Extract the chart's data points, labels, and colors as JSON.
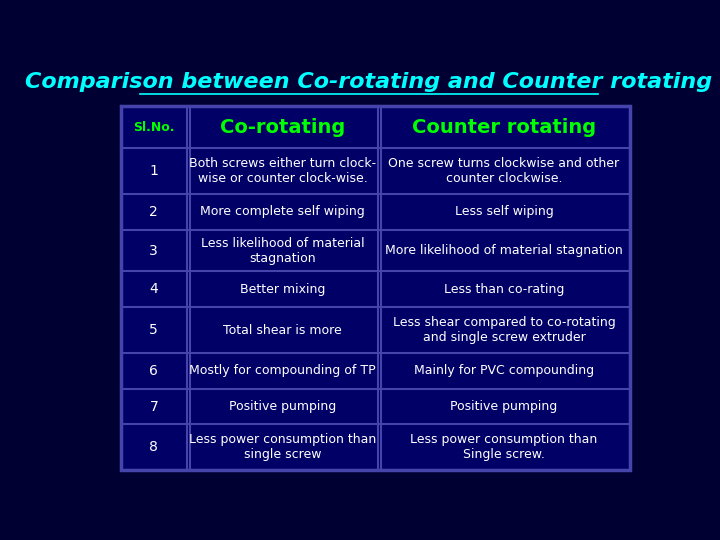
{
  "title": "Comparison between Co-rotating and Counter rotating",
  "title_color": "#00FFFF",
  "title_fontsize": 16,
  "background_color": "#000033",
  "table_bg": "#000066",
  "border_color": "#4444AA",
  "text_color": "#FFFFFF",
  "header_color": "#00FF00",
  "header_sl": "Sl.No.",
  "header_co": "Co-rotating",
  "header_counter": "Counter rotating",
  "rows": [
    {
      "sl": "1",
      "co": "Both screws either turn clock-\nwise or counter clock-wise.",
      "counter": "One screw turns clockwise and other\ncounter clockwise."
    },
    {
      "sl": "2",
      "co": "More complete self wiping",
      "counter": "Less self wiping"
    },
    {
      "sl": "3",
      "co": "Less likelihood of material\nstagnation",
      "counter": "More likelihood of material stagnation"
    },
    {
      "sl": "4",
      "co": "Better mixing",
      "counter": "Less than co-rating"
    },
    {
      "sl": "5",
      "co": "Total shear is more",
      "counter": "Less shear compared to co-rotating\nand single screw extruder"
    },
    {
      "sl": "6",
      "co": "Mostly for compounding of TP",
      "counter": "Mainly for PVC compounding"
    },
    {
      "sl": "7",
      "co": "Positive pumping",
      "counter": "Positive pumping"
    },
    {
      "sl": "8",
      "co": "Less power consumption than\nsingle screw",
      "counter": "Less power consumption than\nSingle screw."
    }
  ]
}
